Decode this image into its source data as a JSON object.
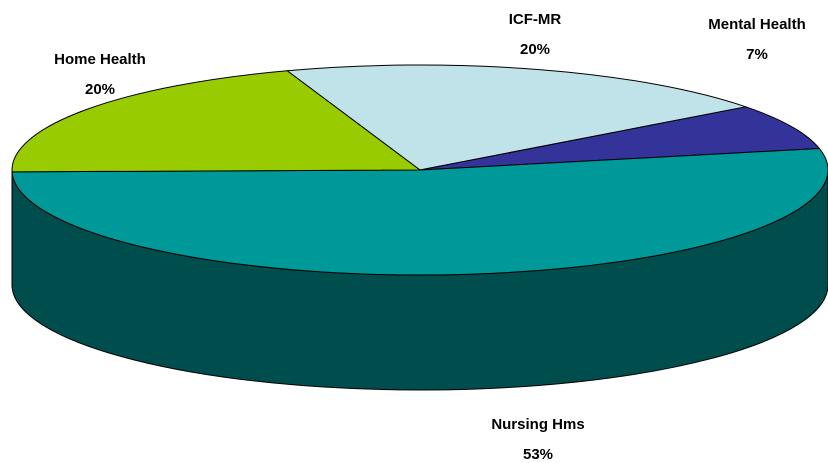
{
  "chart_data": {
    "type": "pie",
    "categories": [
      "ICF-MR",
      "Mental Health",
      "Nursing Hms",
      "Home Health"
    ],
    "values": [
      20,
      7,
      53,
      20
    ],
    "value_labels": [
      "20%",
      "7%",
      "53%",
      "20%"
    ],
    "colors": [
      "#bfe3e8",
      "#333399",
      "#009999",
      "#99cc00"
    ]
  }
}
